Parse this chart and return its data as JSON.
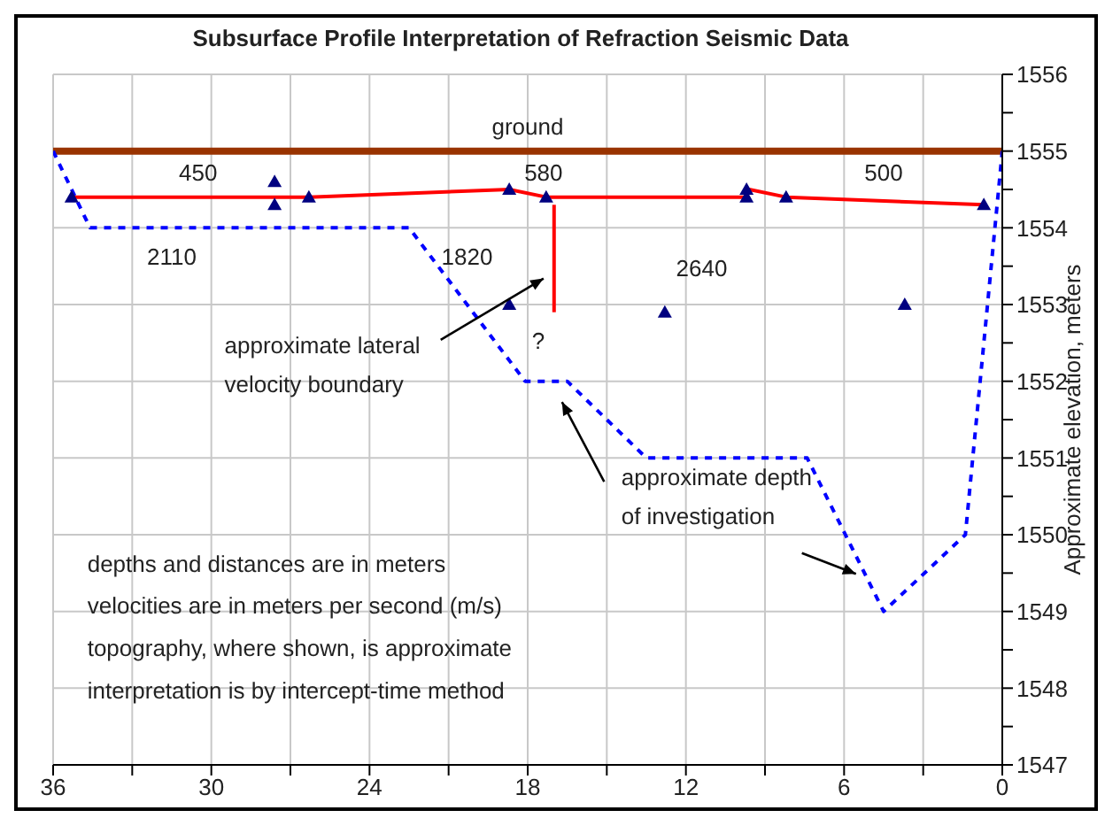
{
  "chart_data": {
    "type": "line",
    "title": "Subsurface Profile Interpretation of Refraction Seismic Data",
    "ylabel": "Approximate elevation, meters",
    "xlim": [
      36,
      0
    ],
    "xticks": [
      36,
      {
        "value": 33,
        "label": null
      },
      30,
      {
        "value": 27,
        "label": null
      },
      24,
      {
        "value": 21,
        "label": null
      },
      18,
      {
        "value": 15,
        "label": null
      },
      12,
      {
        "value": 9,
        "label": null
      },
      6,
      {
        "value": 3,
        "label": null
      },
      0
    ],
    "ylim": [
      1547,
      1556
    ],
    "yticks": [
      1547,
      {
        "value": 1547.5,
        "label": null
      },
      1548,
      {
        "value": 1548.5,
        "label": null
      },
      1549,
      {
        "value": 1549.5,
        "label": null
      },
      1550,
      {
        "value": 1550.5,
        "label": null
      },
      1551,
      {
        "value": 1551.5,
        "label": null
      },
      1552,
      {
        "value": 1552.5,
        "label": null
      },
      1553,
      {
        "value": 1553.5,
        "label": null
      },
      1554,
      {
        "value": 1554.5,
        "label": null
      },
      1555,
      {
        "value": 1555.5,
        "label": null
      },
      1556
    ],
    "grid": true,
    "tick_labels": "xy",
    "series": [
      {
        "color": "#993300",
        "x": [
          36,
          0
        ],
        "values": [
          1555,
          1555
        ],
        "marker": "none",
        "line_style": "solid"
      },
      {
        "color": "#ff0000",
        "x": [
          35.3,
          26.3,
          18.7,
          17.3,
          9.7,
          9.6,
          8.2,
          0.7
        ],
        "values": [
          1554.4,
          1554.4,
          1554.5,
          1554.4,
          1554.4,
          1554.5,
          1554.4,
          1554.3
        ],
        "marker": "none",
        "line_style": "solid"
      },
      {
        "color": "#ff0000",
        "x": [
          17.0,
          17.0
        ],
        "values": [
          1554.3,
          1552.9
        ],
        "marker": "none",
        "line_style": "solid"
      },
      {
        "color": "#0000ff",
        "x": [
          36,
          34.6,
          22.5,
          18.1,
          16.5,
          13.5,
          7.4,
          4.5,
          1.4,
          0
        ],
        "values": [
          1555,
          1554,
          1554,
          1552,
          1552,
          1551,
          1551,
          1549,
          1550,
          1555
        ],
        "marker": "none",
        "line_style": "dashed"
      },
      {
        "type": "scatter",
        "color": "#000080",
        "x": [
          35.3,
          27.6,
          27.6,
          26.3,
          18.7,
          17.3,
          9.7,
          9.7,
          8.2,
          0.7,
          18.7,
          12.8,
          3.7
        ],
        "values": [
          1554.4,
          1554.6,
          1554.3,
          1554.4,
          1554.5,
          1554.4,
          1554.4,
          1554.5,
          1554.4,
          1554.3,
          1553.0,
          1552.9,
          1553.0
        ],
        "marker": "triangle"
      }
    ],
    "annotations": [
      "ground",
      "450",
      "580",
      "500",
      "2110",
      "1820",
      "2640",
      "?",
      "approximate lateral velocity boundary",
      "approximate depth of investigation",
      "depths and distances are in meters",
      "velocities are in meters per second (m/s)",
      "topography, where shown, is approximate",
      "interpretation is by intercept-time method"
    ]
  }
}
